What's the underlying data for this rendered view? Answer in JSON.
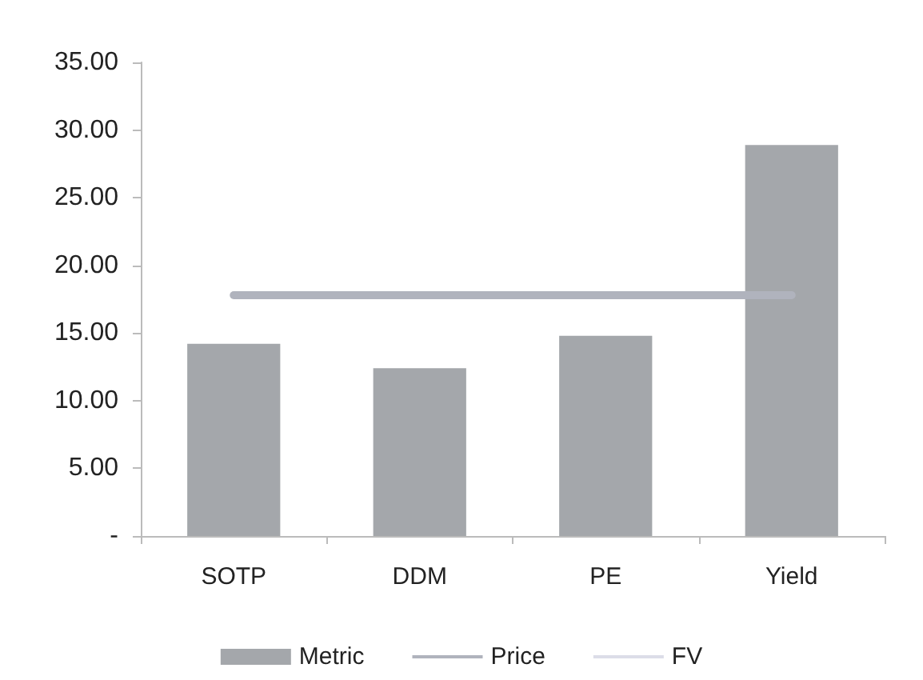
{
  "chart_data": {
    "type": "bar",
    "categories": [
      "SOTP",
      "DDM",
      "PE",
      "Yield"
    ],
    "series": [
      {
        "name": "Metric",
        "color": "#a4a7ab",
        "values": [
          14.2,
          12.4,
          14.8,
          28.9
        ]
      },
      {
        "name": "Price",
        "type": "line",
        "color": "#b0b3bd",
        "values": [
          17.8,
          17.8,
          17.8,
          17.8
        ]
      },
      {
        "name": "FV",
        "type": "line",
        "color": "#dcdde8",
        "values": [
          null,
          null,
          null,
          null
        ]
      }
    ],
    "ylim": [
      0,
      35
    ],
    "yticks": [
      {
        "value": 0,
        "label": "-"
      },
      {
        "value": 5,
        "label": "5.00"
      },
      {
        "value": 10,
        "label": "10.00"
      },
      {
        "value": 15,
        "label": "15.00"
      },
      {
        "value": 20,
        "label": "20.00"
      },
      {
        "value": 25,
        "label": "25.00"
      },
      {
        "value": 30,
        "label": "30.00"
      },
      {
        "value": 35,
        "label": "35.00"
      }
    ],
    "grid": false,
    "legend": "bottom",
    "marker": "none"
  }
}
